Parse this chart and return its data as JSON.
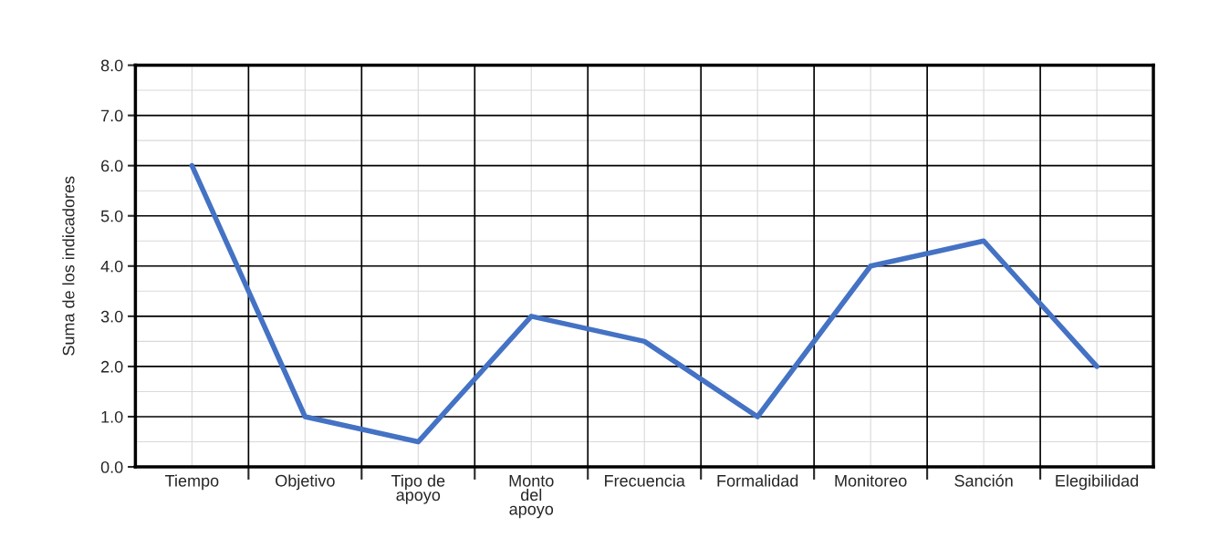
{
  "chart_data": {
    "type": "line",
    "ylabel": "Suma de los indicadores",
    "categories": [
      "Tiempo",
      "Objetivo",
      "Tipo de\napoyo",
      "Monto\ndel\napoyo",
      "Frecuencia",
      "Formalidad",
      "Monitoreo",
      "Sanción",
      "Elegibilidad"
    ],
    "series": [
      {
        "color": "#4472c4",
        "values": [
          6,
          1,
          0.5,
          3,
          2.5,
          1,
          4,
          4.5,
          2
        ]
      }
    ],
    "ylim": [
      0,
      8
    ],
    "yticks": [
      {
        "value": 0,
        "label": "0.0"
      },
      {
        "value": 1,
        "label": "1.0"
      },
      {
        "value": 2,
        "label": "2.0"
      },
      {
        "value": 3,
        "label": "3.0"
      },
      {
        "value": 4,
        "label": "4.0"
      },
      {
        "value": 5,
        "label": "5.0"
      },
      {
        "value": 6,
        "label": "6.0"
      },
      {
        "value": 7,
        "label": "7.0"
      },
      {
        "value": 8,
        "label": "8.0"
      }
    ],
    "grid": true,
    "line_style": "solid"
  }
}
